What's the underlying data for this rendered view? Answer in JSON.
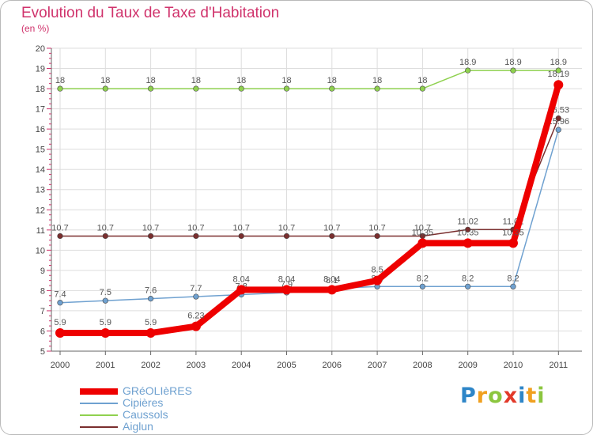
{
  "chart_data": {
    "type": "line",
    "title": "Evolution du Taux de Taxe d'Habitation",
    "subtitle": "(en %)",
    "categories": [
      "2000",
      "2001",
      "2002",
      "2003",
      "2004",
      "2005",
      "2006",
      "2007",
      "2008",
      "2009",
      "2010",
      "2011"
    ],
    "ylim": [
      5,
      20
    ],
    "yticks": [
      "5",
      "6",
      "7",
      "8",
      "9",
      "10",
      "11",
      "12",
      "13",
      "14",
      "15",
      "16",
      "17",
      "18",
      "19",
      "20"
    ],
    "grid": true,
    "legend_position": "bottom-left",
    "series": [
      {
        "name": "Caussols",
        "color": "#8fd14f",
        "values": [
          18,
          18,
          18,
          18,
          18,
          18,
          18,
          18,
          18,
          18.9,
          18.9,
          18.9
        ],
        "labels": [
          "18",
          "18",
          "18",
          "18",
          "18",
          "18",
          "18",
          "18",
          "18",
          "18.9",
          "18.9",
          "18.9"
        ]
      },
      {
        "name": "Aiglun",
        "color": "#7a2e2e",
        "values": [
          10.7,
          10.7,
          10.7,
          10.7,
          10.7,
          10.7,
          10.7,
          10.7,
          10.7,
          11.02,
          11.02,
          16.53
        ],
        "labels": [
          "10.7",
          "10.7",
          "10.7",
          "10.7",
          "10.7",
          "10.7",
          "10.7",
          "10.7",
          "10.7",
          "11.02",
          "11.02",
          "16.53"
        ]
      },
      {
        "name": "Cipières",
        "color": "#6fa1d0",
        "values": [
          7.4,
          7.5,
          7.6,
          7.7,
          7.8,
          7.9,
          8.1,
          8.2,
          8.2,
          8.2,
          8.2,
          15.96
        ],
        "labels": [
          "7.4",
          "7.5",
          "7.6",
          "7.7",
          "7.8",
          "7.9",
          "8.1",
          "8.2",
          "8.2",
          "8.2",
          "8.2",
          "15.96"
        ]
      },
      {
        "name": "GRéOLIèRES",
        "color": "#ee0000",
        "values": [
          5.9,
          5.9,
          5.9,
          6.23,
          8.04,
          8.04,
          8.04,
          8.5,
          10.35,
          10.35,
          10.35,
          18.19
        ],
        "labels": [
          "5.9",
          "5.9",
          "5.9",
          "6.23",
          "8.04",
          "8.04",
          "8.04",
          "8.5",
          "10.35",
          "10.35",
          "10.35",
          "18.19"
        ]
      }
    ]
  },
  "legend": {
    "items": [
      "GRéOLIèRES",
      "Cipières",
      "Caussols",
      "Aiglun"
    ],
    "colors": [
      "#ee0000",
      "#6fa1d0",
      "#8fd14f",
      "#7a2e2e"
    ]
  },
  "logo": {
    "letters": [
      "P",
      "r",
      "o",
      "x",
      "i",
      "t",
      "i"
    ],
    "colors": [
      "#2e86c8",
      "#f0a020",
      "#8cc63f",
      "#e23a2a",
      "#2e86c8",
      "#f0a020",
      "#8cc63f"
    ]
  }
}
